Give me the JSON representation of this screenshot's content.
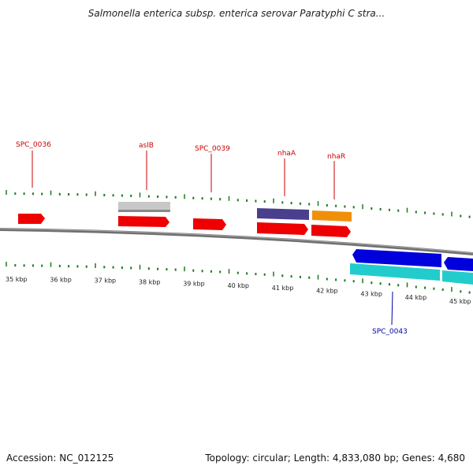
{
  "title": "Salmonella enterica subsp. enterica serovar Paratyphi C stra...",
  "footer": {
    "accession": "Accession: NC_012125",
    "summary": "Topology: circular; Length: 4,833,080 bp; Genes: 4,680"
  },
  "colors": {
    "forward_gene": "#ee0000",
    "reverse_gene": "#0000dd",
    "cyan_track": "#22cccc",
    "grey_track": "#c8c8c8",
    "purple_track": "#4a3f8c",
    "orange_track": "#f0900a",
    "tick": "#1a7a1a",
    "backbone": "#808080",
    "label_forward": "#cc0000",
    "label_reverse": "#0000aa"
  },
  "kbp_labels": [
    "35 kbp",
    "36 kbp",
    "37 kbp",
    "38 kbp",
    "39 kbp",
    "40 kbp",
    "41 kbp",
    "42 kbp",
    "43 kbp",
    "44 kbp",
    "45 kbp"
  ],
  "gene_labels": [
    {
      "text": "SPC_0036",
      "strand": "forward"
    },
    {
      "text": "aslB",
      "strand": "forward"
    },
    {
      "text": "SPC_0039",
      "strand": "forward"
    },
    {
      "text": "nhaA",
      "strand": "forward"
    },
    {
      "text": "nhaR",
      "strand": "forward"
    },
    {
      "text": "SPC_0043",
      "strand": "reverse"
    }
  ]
}
